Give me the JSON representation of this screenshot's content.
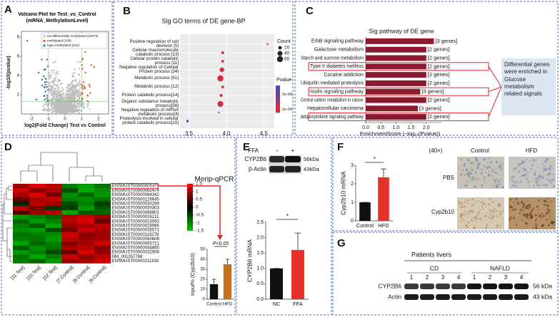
{
  "panels": {
    "labels": [
      "A",
      "B",
      "C",
      "D",
      "E",
      "F",
      "G"
    ]
  },
  "blot_E": {
    "treatment": "FFA",
    "lanes": [
      "-",
      "+"
    ],
    "rows": [
      "CYP2B6",
      "β-Actin"
    ],
    "sizes": [
      "56kDa",
      "43kDa"
    ]
  },
  "ihc_F": {
    "magnification": "(40×)",
    "columns": [
      "Control",
      "HFD"
    ],
    "rows": [
      "PBS",
      "Cyp2b10"
    ]
  },
  "blot_G": {
    "title": "Patients livers",
    "groups": [
      "CD",
      "NAFLD"
    ],
    "lanes": [
      "1",
      "2",
      "3",
      "4",
      "1",
      "2",
      "3",
      "4"
    ],
    "rows": [
      "CYP2B6",
      "Actin"
    ],
    "sizes": [
      "56 kDa",
      "43 kDa"
    ]
  },
  "chart_data": [
    {
      "type": "volcano",
      "title": "Volcano Plot for Test_vs_Control (mRNA_MethylationLevel)",
      "xlabel": "log2(Fold Change) Test vs Control",
      "ylabel": "-log10(pvalue)",
      "series": [
        {
          "name": "not differentially methylated (16073)",
          "color": "#bdbdbd"
        },
        {
          "name": "methylated (109)",
          "color": "#e8572a"
        },
        {
          "name": "hypo-methylated (212)",
          "color": "#2b7b8c"
        }
      ],
      "xlim": [
        -2.6,
        2.6
      ],
      "ylim": [
        0,
        8.6
      ],
      "xticks": [
        -2,
        -1,
        0,
        1,
        2
      ],
      "yticks": [
        2,
        4,
        6,
        8
      ]
    },
    {
      "type": "dot",
      "title": "Sig GO terms of DE gene-BP",
      "categories": [
        "Positive regulation of cell devision [5]",
        "Cellular macromolecule catabolic process [13]",
        "Cellular protein catabolic process [11]",
        "Negative regulation of Cellular Protein process [34]",
        "Metabolic process [61]",
        "Metabolic process [12]",
        "Protein catabolic process[14]",
        "Organic substance metabolic process[56]",
        "Negative regulation of mRNA metabolic process[4]",
        "Proteolysis involved in cellular protein catabolic process[10]"
      ],
      "x": [
        4.55,
        3.95,
        3.95,
        3.94,
        3.92,
        3.95,
        3.93,
        3.92,
        3.9,
        3.48
      ],
      "counts": [
        5,
        13,
        11,
        34,
        61,
        12,
        14,
        56,
        4,
        10
      ],
      "pvalues": [
        0.00012,
        0.0001,
        0.0001,
        0.0001,
        0.0001,
        0.0001,
        0.0001,
        0.0001,
        0.00011,
        0.00025
      ],
      "xlim": [
        3.38,
        4.64
      ],
      "xticks": [
        3.5,
        {
          "value": 4,
          "label": "4.0"
        },
        4.5
      ],
      "grid": true,
      "size_legend": {
        "title": "Count",
        "values": [
          20,
          40,
          60
        ]
      },
      "color_legend": {
        "title": "Pvalue",
        "ticks": [
          {
            "value": 0.0002,
            "label": "2e-04"
          },
          {
            "value": 0.0001,
            "label": "1e-04"
          }
        ],
        "lim": [
          8e-05,
          0.00026
        ],
        "colors": [
          "#e8282b",
          "#3b4cc0"
        ]
      }
    },
    {
      "type": "barh",
      "title": "Sig pathway of DE gene",
      "xlabel": "EnrichmentScore (−log₁₀(Pvalue))",
      "categories": [
        "ErbB signaling pathway",
        "Galactose metabolism",
        "Starch and sucrose metabolism",
        "Type II diabetes mellitus",
        "Cocaine addiction",
        "Ubiquitin mediated proteolysis",
        "Insulin signaling pathway",
        "Central carbon metabolism in cancer",
        "Hepatocellular carcinoma",
        "Adipocytokine signaling pathway"
      ],
      "values": [
        2.25,
        2.0,
        2.0,
        2.0,
        2.0,
        2.0,
        1.8,
        2.0,
        1.72,
        2.0
      ],
      "annotations": [
        "[3 genes]",
        "[2 genes]",
        "[2 genes]",
        "[2 genes]",
        "[2 genes]",
        "[2 genes]",
        "[3 genes]",
        "[2 genes]",
        "[3 genes]",
        "[2 genes]"
      ],
      "color": "#8b1a2e",
      "xlim": [
        0,
        2.5
      ],
      "xticks": [
        {
          "value": 0,
          "label": "0.0"
        },
        0.5,
        {
          "value": 1,
          "label": "1.0"
        },
        1.5,
        {
          "value": 2,
          "label": "2.0"
        }
      ],
      "note": "Differential genes were enriched in Glucose metabolism related signals"
    },
    {
      "type": "heatmap",
      "rows": [
        "ENSMUST00000005477",
        "ENSMUST00000062474",
        "ENSMUST00000084342",
        "ENSMUST00000126645",
        "ENSMUST00000030299",
        "ENSMUST00000030303",
        "ENSMUST00000088801",
        "ENSMUST00000026211",
        "ENSMUST00000023083",
        "ENSMUST00000028986",
        "ENSMUST00000035571",
        "ENSMUST00000118278",
        "ENSMUST00000060608",
        "ENSMUST00000055721",
        "ENSMUST00000034865",
        "ENSMUST00000032908",
        "NM_001357788",
        "ENSMUST00000211830"
      ],
      "columns": [
        "[11.Test]",
        "[10.Test]",
        "[12.Test]",
        "[7.Control]",
        "[8.Control]",
        "[9.Control]"
      ],
      "values": [
        [
          0.9,
          1.3,
          1.1,
          -1.0,
          -1.2,
          -0.9
        ],
        [
          1.2,
          0.8,
          1.0,
          -0.6,
          -1.3,
          -1.1
        ],
        [
          1.0,
          1.3,
          0.7,
          -1.1,
          -0.8,
          -1.2
        ],
        [
          0.6,
          1.0,
          1.2,
          -1.0,
          -1.1,
          -0.9
        ],
        [
          -0.3,
          1.1,
          0.9,
          -0.6,
          -1.0,
          -0.5
        ],
        [
          1.1,
          0.7,
          -0.4,
          -0.5,
          -1.2,
          -0.7
        ],
        [
          0.5,
          0.9,
          1.1,
          -1.3,
          -0.7,
          -0.8
        ],
        [
          -1.2,
          -1.0,
          -0.8,
          1.0,
          1.2,
          0.9
        ],
        [
          -0.8,
          -1.2,
          -1.0,
          1.1,
          1.3,
          0.6
        ],
        [
          -1.0,
          -0.7,
          -1.3,
          0.9,
          1.0,
          1.1
        ],
        [
          -1.1,
          -1.2,
          -0.6,
          0.7,
          1.2,
          1.0
        ],
        [
          -0.9,
          -1.0,
          -1.1,
          1.2,
          0.8,
          0.9
        ],
        [
          -1.0,
          -0.9,
          -1.2,
          1.1,
          0.9,
          1.0
        ],
        [
          -1.3,
          -0.8,
          -1.0,
          0.8,
          1.0,
          1.2
        ],
        [
          -0.7,
          -1.1,
          -0.9,
          1.0,
          1.1,
          0.8
        ],
        [
          -1.2,
          -1.0,
          -0.6,
          0.6,
          1.3,
          0.9
        ],
        [
          -0.9,
          -1.3,
          -1.0,
          1.2,
          0.8,
          1.1
        ],
        [
          -1.0,
          -0.8,
          -1.2,
          0.9,
          1.0,
          1.2
        ]
      ],
      "clim": [
        -1.5,
        1.5
      ],
      "cticks": [
        1.5,
        1,
        0.5,
        0,
        -0.5,
        -1,
        -1.5
      ],
      "colors": [
        "#00c000",
        "#000000",
        "#ff0000"
      ]
    },
    {
      "type": "bar",
      "title": "Merip-qPCR",
      "ylabel": "input% (Cyp2b10)",
      "categories": [
        "Control",
        "HFD"
      ],
      "values": [
        15,
        35
      ],
      "errors": [
        5,
        5
      ],
      "colors": [
        "#111111",
        "#c8711b"
      ],
      "ylim": [
        0,
        50
      ],
      "yticks": [
        0,
        10,
        20,
        30,
        40,
        50
      ],
      "annotation": "P<0.05"
    },
    {
      "type": "bar",
      "ylabel": "CYP2B6 mRNA",
      "categories": [
        "NC",
        "FFA"
      ],
      "values": [
        1.0,
        1.6
      ],
      "errors": [
        0,
        0.55
      ],
      "colors": [
        "#111111",
        "#e8312a"
      ],
      "ylim": [
        0,
        2.5
      ],
      "yticks": [
        {
          "value": 0,
          "label": "0.0"
        },
        0.5,
        {
          "value": 1,
          "label": "1.0"
        },
        1.5,
        {
          "value": 2,
          "label": "2.0"
        },
        2.5
      ],
      "annotation": "*"
    },
    {
      "type": "bar",
      "ylabel": "Cyp2b10 mRNA",
      "categories": [
        "Control",
        "HFD"
      ],
      "values": [
        1.0,
        2.35
      ],
      "errors": [
        0,
        0.45
      ],
      "colors": [
        "#111111",
        "#e8312a"
      ],
      "ylim": [
        0,
        3
      ],
      "yticks": [
        0,
        1,
        2,
        3
      ],
      "annotation": "*"
    }
  ]
}
